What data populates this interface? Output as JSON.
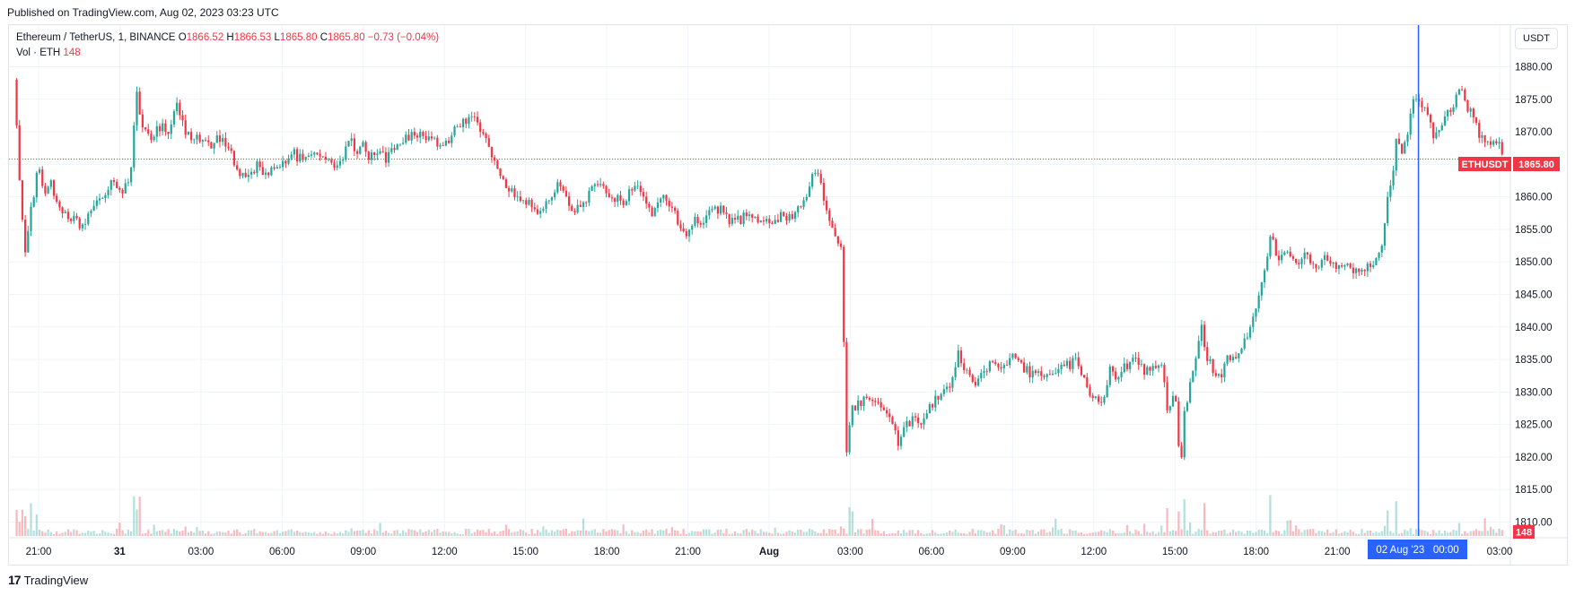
{
  "header": {
    "published": "Published on TradingView.com, Aug 02, 2023 03:23 UTC"
  },
  "legend": {
    "symbol": "Ethereum / TetherUS, 1, BINANCE",
    "o_label": "O",
    "o_value": "1866.52",
    "h_label": "H",
    "h_value": "1866.53",
    "l_label": "L",
    "l_value": "1865.80",
    "c_label": "C",
    "c_value": "1865.80",
    "change": "−0.73 (−0.04%)",
    "vol_label": "Vol · ETH",
    "vol_value": "148"
  },
  "currency_button": "USDT",
  "price_tag": {
    "symbol": "ETHUSDT",
    "price": "1865.80"
  },
  "volume_tag": "148",
  "crosshair_label": "02 Aug '23   00:00",
  "footer": {
    "logo_mark": "17",
    "brand": "TradingView"
  },
  "colors": {
    "up": "#26a69a",
    "down": "#f23645",
    "crosshair": "#2962ff",
    "grid": "#f0f3fa"
  },
  "chart_data": {
    "type": "candlestick",
    "symbol": "ETHUSDT",
    "interval": "1 minute",
    "y_ticks": [
      1810,
      1815,
      1820,
      1825,
      1830,
      1835,
      1840,
      1845,
      1850,
      1855,
      1860,
      1865,
      1870,
      1875,
      1880
    ],
    "ylim": [
      1807.5,
      1882
    ],
    "last_price": 1865.8,
    "x_ticks": [
      {
        "label": "21:00",
        "x": 0.0
      },
      {
        "label": "31",
        "x": 0.125
      },
      {
        "label": "03:00",
        "x": 0.25
      },
      {
        "label": "06:00",
        "x": 0.375
      },
      {
        "label": "09:00",
        "x": 0.5
      },
      {
        "label": "12:00",
        "x": 0.625
      },
      {
        "label": "15:00",
        "x": 0.75
      },
      {
        "label": "18:00",
        "x": 0.875
      },
      {
        "label": "21:00",
        "x": 1.0
      },
      {
        "label": "Aug",
        "x": 1.125
      },
      {
        "label": "03:00",
        "x": 1.25
      },
      {
        "label": "06:00",
        "x": 1.375
      },
      {
        "label": "09:00",
        "x": 1.5
      },
      {
        "label": "12:00",
        "x": 1.625
      },
      {
        "label": "15:00",
        "x": 1.75
      },
      {
        "label": "18:00",
        "x": 1.875
      },
      {
        "label": "21:00",
        "x": 2.0
      },
      {
        "label": "03:00",
        "x": 2.25
      }
    ],
    "crosshair_x": 2.125,
    "path": [
      [
        -0.036,
        1878
      ],
      [
        -0.032,
        1865
      ],
      [
        -0.026,
        1858
      ],
      [
        -0.022,
        1849
      ],
      [
        -0.018,
        1854
      ],
      [
        -0.012,
        1858
      ],
      [
        -0.005,
        1862
      ],
      [
        0.0,
        1865
      ],
      [
        0.008,
        1860
      ],
      [
        0.02,
        1862
      ],
      [
        0.03,
        1858
      ],
      [
        0.045,
        1857
      ],
      [
        0.06,
        1856
      ],
      [
        0.07,
        1855
      ],
      [
        0.08,
        1858
      ],
      [
        0.095,
        1860
      ],
      [
        0.11,
        1862
      ],
      [
        0.12,
        1862
      ],
      [
        0.13,
        1861
      ],
      [
        0.14,
        1863
      ],
      [
        0.145,
        1866
      ],
      [
        0.15,
        1877
      ],
      [
        0.158,
        1872
      ],
      [
        0.17,
        1869
      ],
      [
        0.18,
        1870
      ],
      [
        0.19,
        1871
      ],
      [
        0.2,
        1870
      ],
      [
        0.212,
        1874
      ],
      [
        0.225,
        1870
      ],
      [
        0.24,
        1869
      ],
      [
        0.25,
        1869
      ],
      [
        0.265,
        1868
      ],
      [
        0.28,
        1869
      ],
      [
        0.295,
        1867
      ],
      [
        0.305,
        1864
      ],
      [
        0.315,
        1864
      ],
      [
        0.325,
        1863
      ],
      [
        0.335,
        1865
      ],
      [
        0.35,
        1863
      ],
      [
        0.36,
        1864
      ],
      [
        0.375,
        1865
      ],
      [
        0.39,
        1867
      ],
      [
        0.4,
        1866
      ],
      [
        0.415,
        1867
      ],
      [
        0.43,
        1866
      ],
      [
        0.44,
        1866
      ],
      [
        0.45,
        1865
      ],
      [
        0.46,
        1865
      ],
      [
        0.47,
        1866
      ],
      [
        0.478,
        1869
      ],
      [
        0.49,
        1867
      ],
      [
        0.5,
        1868
      ],
      [
        0.51,
        1866
      ],
      [
        0.52,
        1867
      ],
      [
        0.535,
        1866
      ],
      [
        0.55,
        1868
      ],
      [
        0.565,
        1869
      ],
      [
        0.58,
        1870
      ],
      [
        0.6,
        1869
      ],
      [
        0.615,
        1868
      ],
      [
        0.625,
        1868
      ],
      [
        0.64,
        1870
      ],
      [
        0.66,
        1872
      ],
      [
        0.67,
        1872
      ],
      [
        0.685,
        1870
      ],
      [
        0.695,
        1867
      ],
      [
        0.705,
        1864
      ],
      [
        0.72,
        1862
      ],
      [
        0.74,
        1860
      ],
      [
        0.755,
        1859
      ],
      [
        0.77,
        1857
      ],
      [
        0.785,
        1860
      ],
      [
        0.8,
        1862
      ],
      [
        0.81,
        1860
      ],
      [
        0.825,
        1858
      ],
      [
        0.84,
        1859
      ],
      [
        0.855,
        1862
      ],
      [
        0.87,
        1861
      ],
      [
        0.885,
        1860
      ],
      [
        0.9,
        1859
      ],
      [
        0.915,
        1862
      ],
      [
        0.93,
        1860
      ],
      [
        0.945,
        1857
      ],
      [
        0.96,
        1860
      ],
      [
        0.975,
        1859
      ],
      [
        0.99,
        1855
      ],
      [
        1.0,
        1854
      ],
      [
        1.01,
        1857
      ],
      [
        1.02,
        1856
      ],
      [
        1.035,
        1858
      ],
      [
        1.05,
        1858
      ],
      [
        1.07,
        1856
      ],
      [
        1.09,
        1857
      ],
      [
        1.11,
        1856
      ],
      [
        1.125,
        1856
      ],
      [
        1.14,
        1857
      ],
      [
        1.155,
        1857
      ],
      [
        1.17,
        1858
      ],
      [
        1.185,
        1861
      ],
      [
        1.195,
        1864
      ],
      [
        1.205,
        1862
      ],
      [
        1.215,
        1857
      ],
      [
        1.225,
        1855
      ],
      [
        1.232,
        1853
      ],
      [
        1.238,
        1851
      ],
      [
        1.242,
        1825
      ],
      [
        1.245,
        1820
      ],
      [
        1.25,
        1827
      ],
      [
        1.26,
        1828
      ],
      [
        1.275,
        1829
      ],
      [
        1.29,
        1828
      ],
      [
        1.3,
        1827
      ],
      [
        1.315,
        1825
      ],
      [
        1.325,
        1822
      ],
      [
        1.335,
        1825
      ],
      [
        1.35,
        1826
      ],
      [
        1.36,
        1825
      ],
      [
        1.375,
        1828
      ],
      [
        1.39,
        1830
      ],
      [
        1.405,
        1831
      ],
      [
        1.415,
        1836
      ],
      [
        1.425,
        1834
      ],
      [
        1.44,
        1831
      ],
      [
        1.455,
        1833
      ],
      [
        1.47,
        1835
      ],
      [
        1.485,
        1834
      ],
      [
        1.5,
        1836
      ],
      [
        1.51,
        1834
      ],
      [
        1.525,
        1833
      ],
      [
        1.54,
        1833
      ],
      [
        1.555,
        1832
      ],
      [
        1.57,
        1834
      ],
      [
        1.585,
        1834
      ],
      [
        1.6,
        1835
      ],
      [
        1.615,
        1830
      ],
      [
        1.63,
        1829
      ],
      [
        1.64,
        1828
      ],
      [
        1.65,
        1834
      ],
      [
        1.66,
        1832
      ],
      [
        1.675,
        1834
      ],
      [
        1.69,
        1835
      ],
      [
        1.705,
        1833
      ],
      [
        1.72,
        1834
      ],
      [
        1.73,
        1834
      ],
      [
        1.74,
        1826
      ],
      [
        1.75,
        1831
      ],
      [
        1.758,
        1818
      ],
      [
        1.765,
        1827
      ],
      [
        1.775,
        1832
      ],
      [
        1.785,
        1837
      ],
      [
        1.79,
        1841
      ],
      [
        1.798,
        1836
      ],
      [
        1.81,
        1833
      ],
      [
        1.822,
        1832
      ],
      [
        1.83,
        1835
      ],
      [
        1.845,
        1836
      ],
      [
        1.86,
        1838
      ],
      [
        1.87,
        1842
      ],
      [
        1.88,
        1845
      ],
      [
        1.89,
        1849
      ],
      [
        1.898,
        1855
      ],
      [
        1.905,
        1851
      ],
      [
        1.92,
        1851
      ],
      [
        1.935,
        1850
      ],
      [
        1.95,
        1851
      ],
      [
        1.965,
        1849
      ],
      [
        1.98,
        1851
      ],
      [
        1.995,
        1849
      ],
      [
        2.01,
        1850
      ],
      [
        2.025,
        1848
      ],
      [
        2.04,
        1849
      ],
      [
        2.05,
        1849
      ],
      [
        2.06,
        1851
      ],
      [
        2.07,
        1853
      ],
      [
        2.078,
        1860
      ],
      [
        2.085,
        1863
      ],
      [
        2.092,
        1870
      ],
      [
        2.1,
        1867
      ],
      [
        2.11,
        1871
      ],
      [
        2.118,
        1876
      ],
      [
        2.13,
        1873
      ],
      [
        2.14,
        1873
      ],
      [
        2.15,
        1869
      ],
      [
        2.16,
        1870
      ],
      [
        2.17,
        1873
      ],
      [
        2.182,
        1875
      ],
      [
        2.19,
        1877
      ],
      [
        2.198,
        1874
      ],
      [
        2.21,
        1872
      ],
      [
        2.22,
        1869
      ],
      [
        2.23,
        1868
      ],
      [
        2.24,
        1869
      ],
      [
        2.25,
        1868
      ],
      [
        2.256,
        1866
      ]
    ]
  }
}
